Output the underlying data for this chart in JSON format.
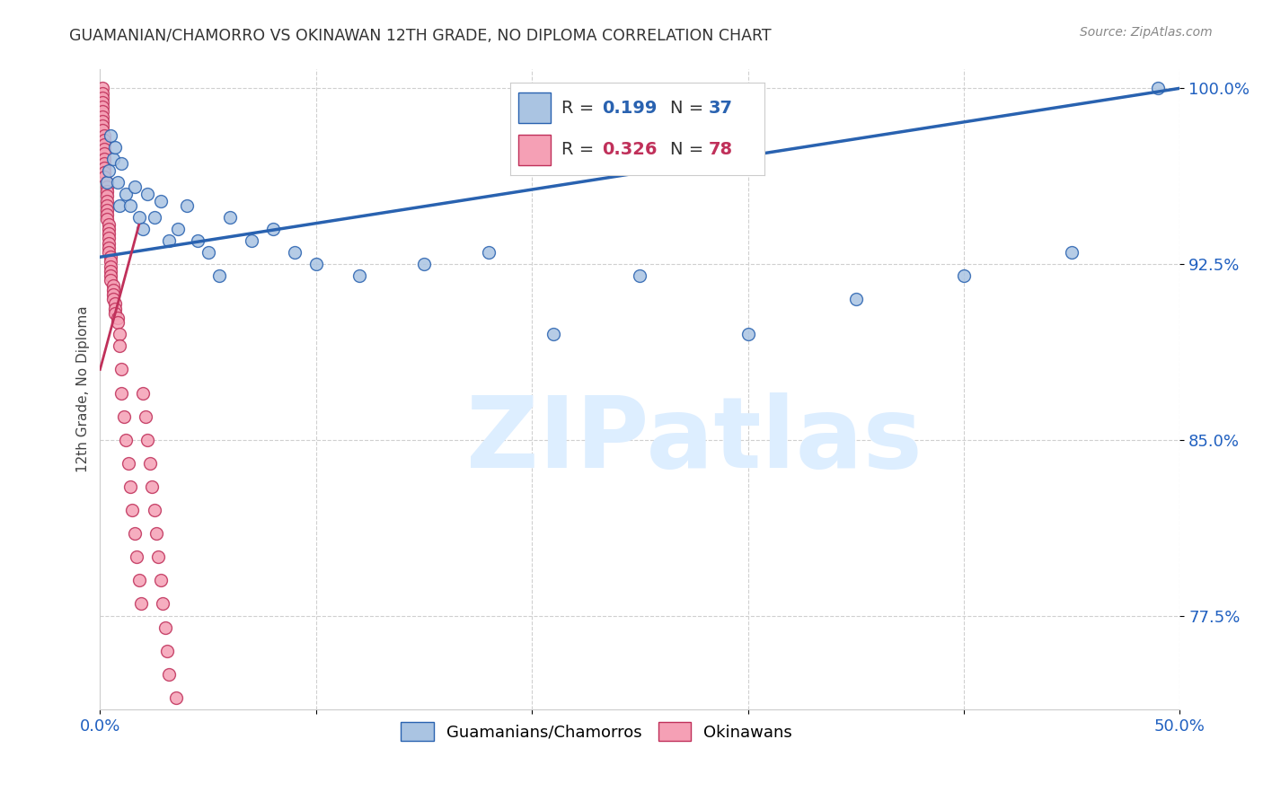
{
  "title": "GUAMANIAN/CHAMORRO VS OKINAWAN 12TH GRADE, NO DIPLOMA CORRELATION CHART",
  "source": "Source: ZipAtlas.com",
  "ylabel": "12th Grade, No Diploma",
  "xlim": [
    0.0,
    0.5
  ],
  "ylim": [
    0.735,
    1.008
  ],
  "xticks": [
    0.0,
    0.1,
    0.2,
    0.3,
    0.4,
    0.5
  ],
  "xticklabels": [
    "0.0%",
    "",
    "",
    "",
    "",
    "50.0%"
  ],
  "yticks": [
    0.775,
    0.85,
    0.925,
    1.0
  ],
  "yticklabels": [
    "77.5%",
    "85.0%",
    "92.5%",
    "100.0%"
  ],
  "blue_scatter_x": [
    0.003,
    0.004,
    0.005,
    0.006,
    0.007,
    0.008,
    0.009,
    0.01,
    0.012,
    0.014,
    0.016,
    0.018,
    0.02,
    0.022,
    0.025,
    0.028,
    0.032,
    0.036,
    0.04,
    0.045,
    0.05,
    0.055,
    0.06,
    0.07,
    0.08,
    0.09,
    0.1,
    0.12,
    0.15,
    0.18,
    0.21,
    0.25,
    0.3,
    0.35,
    0.4,
    0.45,
    0.49
  ],
  "blue_scatter_y": [
    0.96,
    0.965,
    0.98,
    0.97,
    0.975,
    0.96,
    0.95,
    0.968,
    0.955,
    0.95,
    0.958,
    0.945,
    0.94,
    0.955,
    0.945,
    0.952,
    0.935,
    0.94,
    0.95,
    0.935,
    0.93,
    0.92,
    0.945,
    0.935,
    0.94,
    0.93,
    0.925,
    0.92,
    0.925,
    0.93,
    0.895,
    0.92,
    0.895,
    0.91,
    0.92,
    0.93,
    1.0
  ],
  "pink_scatter_x": [
    0.001,
    0.001,
    0.001,
    0.001,
    0.001,
    0.001,
    0.001,
    0.001,
    0.001,
    0.001,
    0.002,
    0.002,
    0.002,
    0.002,
    0.002,
    0.002,
    0.002,
    0.002,
    0.002,
    0.002,
    0.003,
    0.003,
    0.003,
    0.003,
    0.003,
    0.003,
    0.003,
    0.003,
    0.003,
    0.004,
    0.004,
    0.004,
    0.004,
    0.004,
    0.004,
    0.004,
    0.005,
    0.005,
    0.005,
    0.005,
    0.005,
    0.005,
    0.006,
    0.006,
    0.006,
    0.006,
    0.007,
    0.007,
    0.007,
    0.008,
    0.008,
    0.009,
    0.009,
    0.01,
    0.01,
    0.011,
    0.012,
    0.013,
    0.014,
    0.015,
    0.016,
    0.017,
    0.018,
    0.019,
    0.02,
    0.021,
    0.022,
    0.023,
    0.024,
    0.025,
    0.026,
    0.027,
    0.028,
    0.029,
    0.03,
    0.031,
    0.032,
    0.035
  ],
  "pink_scatter_y": [
    1.0,
    0.998,
    0.996,
    0.994,
    0.992,
    0.99,
    0.988,
    0.986,
    0.984,
    0.982,
    0.98,
    0.978,
    0.976,
    0.974,
    0.972,
    0.97,
    0.968,
    0.966,
    0.964,
    0.962,
    0.96,
    0.958,
    0.956,
    0.954,
    0.952,
    0.95,
    0.948,
    0.946,
    0.944,
    0.942,
    0.94,
    0.938,
    0.936,
    0.934,
    0.932,
    0.93,
    0.928,
    0.926,
    0.924,
    0.922,
    0.92,
    0.918,
    0.916,
    0.914,
    0.912,
    0.91,
    0.908,
    0.906,
    0.904,
    0.902,
    0.9,
    0.895,
    0.89,
    0.88,
    0.87,
    0.86,
    0.85,
    0.84,
    0.83,
    0.82,
    0.81,
    0.8,
    0.79,
    0.78,
    0.87,
    0.86,
    0.85,
    0.84,
    0.83,
    0.82,
    0.81,
    0.8,
    0.79,
    0.78,
    0.77,
    0.76,
    0.75,
    0.74
  ],
  "blue_line_x0": 0.0,
  "blue_line_y0": 0.928,
  "blue_line_x1": 0.5,
  "blue_line_y1": 1.0,
  "pink_line_x0": 0.0,
  "pink_line_y0": 0.88,
  "pink_line_x1": 0.035,
  "pink_line_y1": 1.0,
  "blue_color": "#aac4e2",
  "pink_color": "#f5a0b5",
  "blue_line_color": "#2962b0",
  "pink_line_color": "#c0305a",
  "grid_color": "#d0d0d0",
  "title_color": "#333333",
  "axis_label_color": "#444444",
  "tick_label_color": "#2060c0",
  "watermark_color": "#ddeeff",
  "background_color": "#ffffff"
}
